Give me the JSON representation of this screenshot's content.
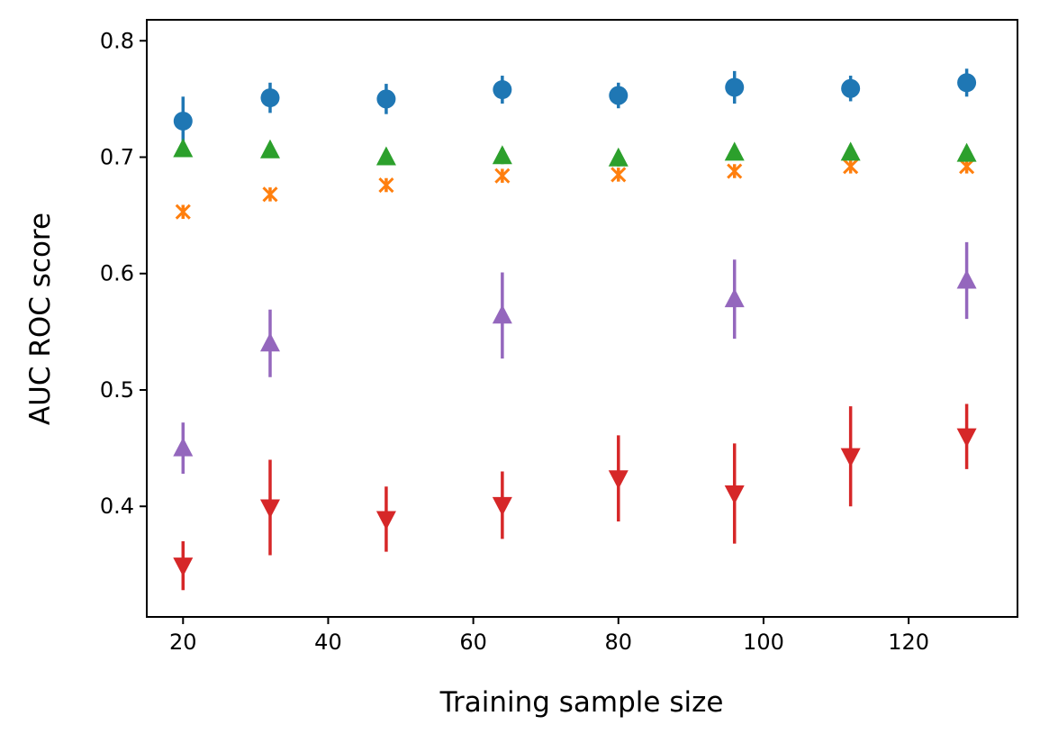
{
  "chart_data": {
    "type": "scatter",
    "xlabel": "Training sample size",
    "ylabel": "AUC ROC score",
    "xlim": [
      15,
      135
    ],
    "ylim": [
      0.305,
      0.818
    ],
    "xticks": [
      20,
      40,
      60,
      80,
      100,
      120
    ],
    "yticks": [
      0.4,
      0.5,
      0.6,
      0.7,
      0.8
    ],
    "grid": false,
    "legend": "none",
    "x": [
      20,
      32,
      48,
      64,
      80,
      96,
      112,
      128
    ],
    "series": [
      {
        "marker": "circle",
        "color": "#1f77b4",
        "values": [
          0.731,
          0.751,
          0.75,
          0.758,
          0.753,
          0.76,
          0.759,
          0.764
        ],
        "errors": [
          0.021,
          0.013,
          0.013,
          0.012,
          0.011,
          0.014,
          0.011,
          0.012
        ]
      },
      {
        "marker": "x",
        "color": "#ff7f0e",
        "values": [
          0.653,
          0.668,
          0.676,
          0.684,
          0.685,
          0.688,
          0.692,
          0.692
        ],
        "errors": [
          0.006,
          0.006,
          0.006,
          0.006,
          0.006,
          0.006,
          0.006,
          0.006
        ]
      },
      {
        "marker": "triangle-up",
        "color": "#2ca02c",
        "values": [
          0.707,
          0.706,
          0.7,
          0.701,
          0.699,
          0.704,
          0.704,
          0.703
        ],
        "errors": [
          0.007,
          0.006,
          0.006,
          0.007,
          0.007,
          0.006,
          0.006,
          0.006
        ]
      },
      {
        "marker": "triangle-up",
        "color": "#9467bd",
        "values": [
          0.45,
          0.54,
          0.564,
          0.578,
          0.594
        ],
        "x": [
          20,
          32,
          64,
          96,
          128
        ],
        "errors": [
          0.022,
          0.029,
          0.037,
          0.034,
          0.033
        ]
      },
      {
        "marker": "triangle-down",
        "color": "#d62728",
        "values": [
          0.349,
          0.399,
          0.389,
          0.401,
          0.424,
          0.411,
          0.443,
          0.46
        ],
        "errors": [
          0.021,
          0.041,
          0.028,
          0.029,
          0.037,
          0.043,
          0.043,
          0.028
        ]
      }
    ]
  }
}
